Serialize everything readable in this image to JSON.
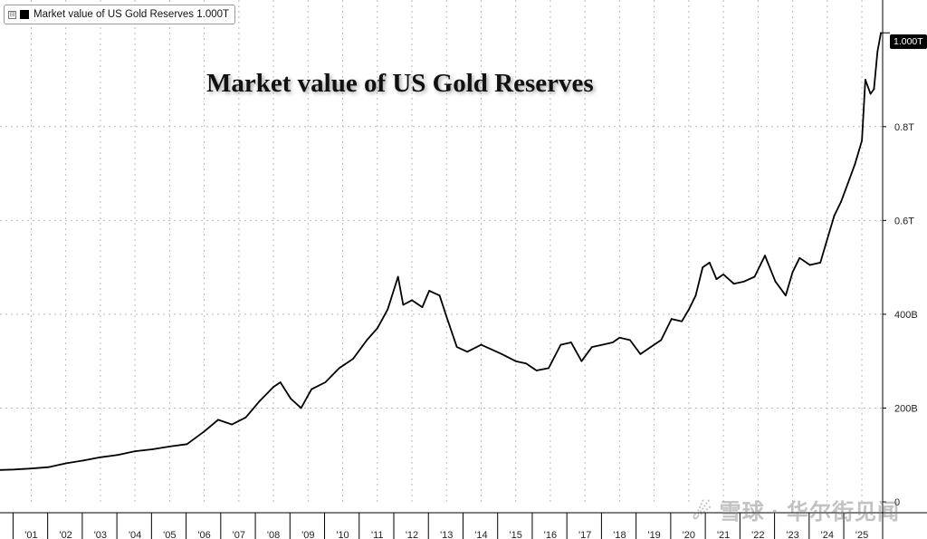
{
  "legend": {
    "toggle_symbol": "⊟",
    "label": "Market value of US Gold Reserves 1.000T"
  },
  "watermark": "☄ 雪球 · 华尔街见闻",
  "chart_data": {
    "type": "line",
    "title": "Market value of US Gold Reserves",
    "xlabel": "",
    "ylabel": "",
    "units": "USD billions",
    "xlim": [
      2000.1,
      2025.6
    ],
    "ylim": [
      0,
      1070
    ],
    "y_ticks": [
      {
        "value": 0,
        "label": "0"
      },
      {
        "value": 200,
        "label": "200B"
      },
      {
        "value": 400,
        "label": "400B"
      },
      {
        "value": 600,
        "label": "0.6T"
      },
      {
        "value": 800,
        "label": "0.8T"
      }
    ],
    "x_ticks": [
      {
        "value": 2001,
        "label": "'01"
      },
      {
        "value": 2002,
        "label": "'02"
      },
      {
        "value": 2003,
        "label": "'03"
      },
      {
        "value": 2004,
        "label": "'04"
      },
      {
        "value": 2005,
        "label": "'05"
      },
      {
        "value": 2006,
        "label": "'06"
      },
      {
        "value": 2007,
        "label": "'07"
      },
      {
        "value": 2008,
        "label": "'08"
      },
      {
        "value": 2009,
        "label": "'09"
      },
      {
        "value": 2010,
        "label": "'10"
      },
      {
        "value": 2011,
        "label": "'11"
      },
      {
        "value": 2012,
        "label": "'12"
      },
      {
        "value": 2013,
        "label": "'13"
      },
      {
        "value": 2014,
        "label": "'14"
      },
      {
        "value": 2015,
        "label": "'15"
      },
      {
        "value": 2016,
        "label": "'16"
      },
      {
        "value": 2017,
        "label": "'17"
      },
      {
        "value": 2018,
        "label": "'18"
      },
      {
        "value": 2019,
        "label": "'19"
      },
      {
        "value": 2020,
        "label": "'20"
      },
      {
        "value": 2021,
        "label": "'21"
      },
      {
        "value": 2022,
        "label": "'22"
      },
      {
        "value": 2023,
        "label": "'23"
      },
      {
        "value": 2024,
        "label": "'24"
      },
      {
        "value": 2025,
        "label": "'25"
      }
    ],
    "last_value_label": "1.000T",
    "grid": true,
    "legend_position": "top-left",
    "series": [
      {
        "name": "Market value of US Gold Reserves",
        "color": "#000000",
        "x": [
          2000.1,
          2000.5,
          2001.0,
          2001.5,
          2002.0,
          2002.5,
          2003.0,
          2003.5,
          2004.0,
          2004.5,
          2005.0,
          2005.5,
          2006.0,
          2006.4,
          2006.8,
          2007.2,
          2007.6,
          2008.0,
          2008.2,
          2008.5,
          2008.8,
          2009.1,
          2009.5,
          2009.9,
          2010.3,
          2010.7,
          2011.0,
          2011.3,
          2011.6,
          2011.75,
          2012.0,
          2012.3,
          2012.5,
          2012.8,
          2013.0,
          2013.3,
          2013.6,
          2014.0,
          2014.3,
          2014.6,
          2015.0,
          2015.3,
          2015.6,
          2015.95,
          2016.3,
          2016.6,
          2016.9,
          2017.2,
          2017.5,
          2017.8,
          2018.0,
          2018.3,
          2018.6,
          2018.9,
          2019.2,
          2019.5,
          2019.8,
          2020.0,
          2020.2,
          2020.4,
          2020.6,
          2020.8,
          2021.0,
          2021.3,
          2021.6,
          2021.9,
          2022.2,
          2022.5,
          2022.8,
          2023.0,
          2023.2,
          2023.5,
          2023.8,
          2024.0,
          2024.2,
          2024.4,
          2024.6,
          2024.8,
          2025.0,
          2025.1,
          2025.25,
          2025.35,
          2025.45,
          2025.55
        ],
        "values": [
          68,
          69,
          71,
          74,
          82,
          88,
          95,
          100,
          108,
          112,
          118,
          123,
          150,
          175,
          165,
          180,
          215,
          245,
          255,
          220,
          200,
          240,
          255,
          285,
          305,
          345,
          370,
          410,
          480,
          420,
          430,
          415,
          450,
          440,
          395,
          330,
          320,
          335,
          325,
          315,
          300,
          295,
          280,
          285,
          335,
          340,
          300,
          330,
          335,
          340,
          350,
          345,
          315,
          330,
          345,
          390,
          385,
          410,
          440,
          500,
          510,
          475,
          485,
          465,
          470,
          480,
          525,
          470,
          440,
          490,
          520,
          505,
          510,
          560,
          610,
          640,
          680,
          720,
          770,
          900,
          870,
          880,
          960,
          1000
        ]
      }
    ]
  }
}
